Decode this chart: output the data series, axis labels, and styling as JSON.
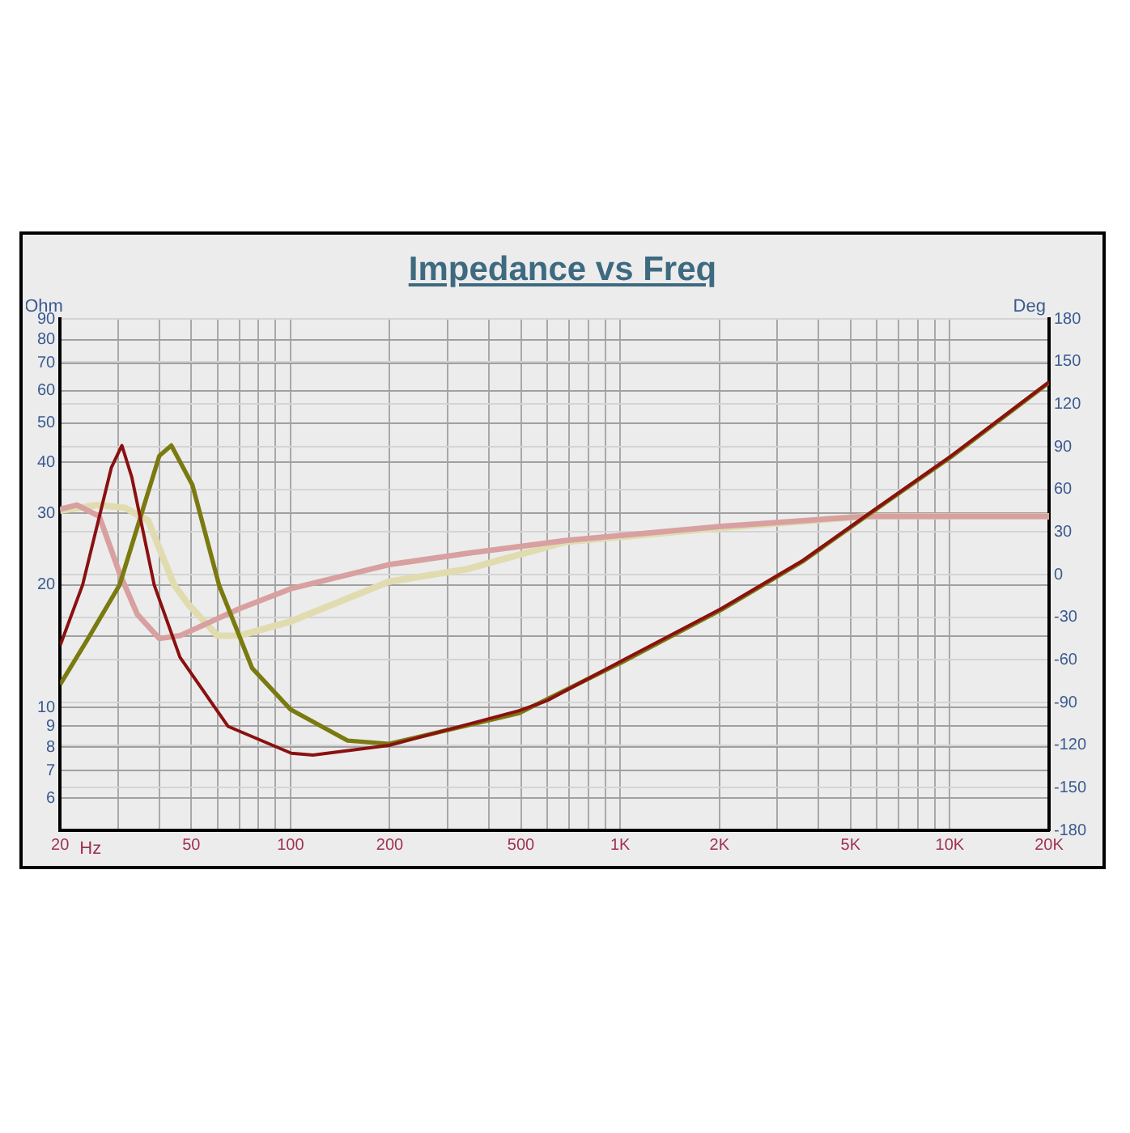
{
  "chart_data": {
    "type": "line",
    "title": "Impedance vs Freq",
    "xlabel": "Hz",
    "ylabel": "Ohm",
    "y2label": "Deg",
    "log": "xy",
    "grid": true,
    "legend": false,
    "marker": "none",
    "line_style": "solid",
    "xlim": [
      20,
      20000
    ],
    "xticks": [
      20,
      50,
      100,
      200,
      500,
      {
        "value": 1000,
        "label": "1K"
      },
      {
        "value": 2000,
        "label": "2K"
      },
      {
        "value": 5000,
        "label": "5K"
      },
      {
        "value": 10000,
        "label": "10K"
      },
      {
        "value": 20000,
        "label": "20K"
      },
      {
        "value": 30,
        "label": null
      },
      {
        "value": 40,
        "label": null
      },
      {
        "value": 60,
        "label": null
      },
      {
        "value": 70,
        "label": null
      },
      {
        "value": 80,
        "label": null
      },
      {
        "value": 90,
        "label": null
      },
      {
        "value": 300,
        "label": null
      },
      {
        "value": 400,
        "label": null
      },
      {
        "value": 600,
        "label": null
      },
      {
        "value": 700,
        "label": null
      },
      {
        "value": 800,
        "label": null
      },
      {
        "value": 900,
        "label": null
      },
      {
        "value": 3000,
        "label": null
      },
      {
        "value": 4000,
        "label": null
      },
      {
        "value": 6000,
        "label": null
      },
      {
        "value": 7000,
        "label": null
      },
      {
        "value": 8000,
        "label": null
      },
      {
        "value": 9000,
        "label": null
      }
    ],
    "ylim": [
      5,
      90
    ],
    "yticks": [
      {
        "value": 5,
        "label": null
      },
      6,
      7,
      8,
      9,
      10,
      {
        "value": 15,
        "label": null
      },
      20,
      30,
      40,
      50,
      60,
      70,
      80,
      90
    ],
    "y2lim": [
      -180,
      180
    ],
    "y2ticks": [
      -180,
      -150,
      -120,
      -90,
      -60,
      -30,
      0,
      30,
      60,
      90,
      120,
      150,
      180
    ],
    "series": [
      {
        "color": "#8b1010",
        "x": [
          20,
          23.4,
          28.6,
          30.8,
          33,
          38.6,
          46.2,
          64.6,
          100.6,
          117,
          199,
          494,
          599,
          1006,
          2028,
          3560,
          5540,
          10100,
          20000
        ],
        "values": [
          14.2,
          20,
          38.8,
          44,
          36.8,
          20,
          13.3,
          9,
          7.73,
          7.65,
          8.08,
          9.83,
          10.4,
          13,
          17.5,
          22.9,
          29.5,
          41.5,
          63
        ]
      },
      {
        "color": "#7a7a10",
        "x": [
          20,
          24.1,
          30.3,
          40,
          43.5,
          50.4,
          60.7,
          76.5,
          100,
          149,
          199,
          494,
          1006,
          2028,
          3560,
          5540,
          10100,
          20000
        ],
        "values": [
          11.4,
          14.6,
          20,
          41.5,
          44,
          35.2,
          20,
          12.5,
          9.9,
          8.3,
          8.15,
          9.7,
          12.9,
          17.4,
          22.8,
          29.4,
          41.3,
          62.8
        ]
      },
      {
        "color": "#d8a0a0",
        "axis": "y2",
        "x": [
          20,
          22.5,
          26.3,
          30.3,
          34.3,
          40,
          46.2,
          70,
          100,
          199,
          345,
          683,
          2028,
          5540,
          20000
        ],
        "values": [
          46,
          49,
          41,
          1,
          -28,
          -45,
          -43,
          -24,
          -10,
          7,
          15,
          24,
          34,
          41,
          41
        ]
      },
      {
        "color": "#e0dcb0",
        "axis": "y2",
        "x": [
          20,
          26,
          31.5,
          37,
          44.3,
          49,
          60,
          70,
          100,
          199,
          345,
          683,
          2028,
          5540,
          20000
        ],
        "values": [
          45,
          49,
          47,
          38,
          -7,
          -21,
          -43,
          -43,
          -33,
          -5,
          4,
          23,
          33,
          41,
          41
        ]
      }
    ]
  }
}
